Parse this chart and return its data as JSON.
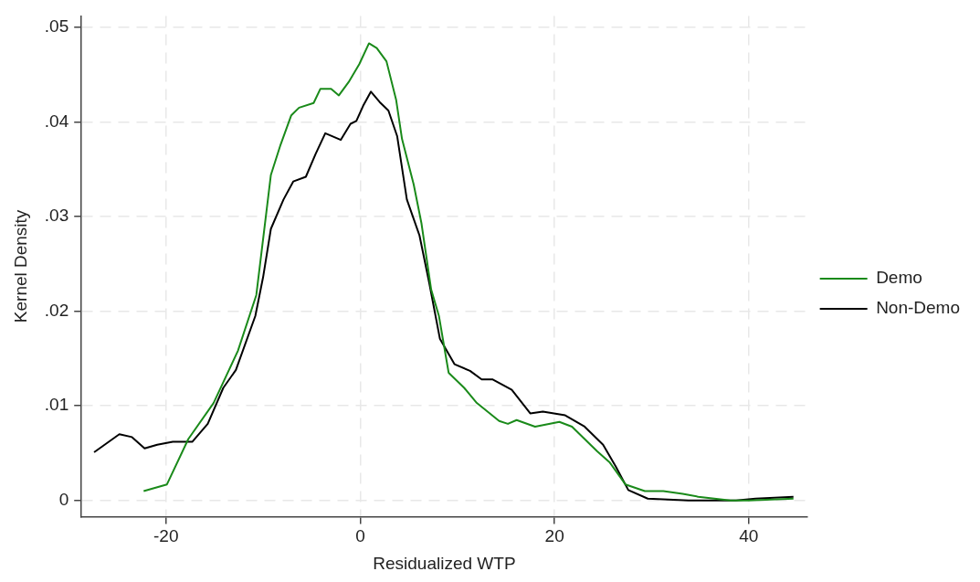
{
  "chart_data": {
    "type": "line",
    "xlabel": "Residualized WTP",
    "ylabel": "Kernel Density",
    "xlim": [
      -28.7,
      46
    ],
    "ylim": [
      -0.0017,
      0.0512
    ],
    "xticks": [
      -20,
      0,
      20,
      40
    ],
    "yticks": [
      {
        "value": 0,
        "label": "0"
      },
      {
        "value": 0.01,
        "label": ".01"
      },
      {
        "value": 0.02,
        "label": ".02"
      },
      {
        "value": 0.03,
        "label": ".03"
      },
      {
        "value": 0.04,
        "label": ".04"
      },
      {
        "value": 0.05,
        "label": ".05"
      }
    ],
    "grid": true,
    "legend": "right",
    "marker": "none",
    "line_style": "solid",
    "series": [
      {
        "name": "Demo",
        "color": "#1a8a1a",
        "x": [
          -22.3,
          -19.9,
          -17.7,
          -15.1,
          -12.6,
          -10.7,
          -9.2,
          -8.2,
          -7.1,
          -6.3,
          -4.8,
          -4.1,
          -3.0,
          -2.2,
          -1.2,
          -0.1,
          0.9,
          1.7,
          2.7,
          3.7,
          4.3,
          5.5,
          6.3,
          7.3,
          8.1,
          9.1,
          10.7,
          12.0,
          14.3,
          15.2,
          16.1,
          18.0,
          20.5,
          21.8,
          24.4,
          25.7,
          27.3,
          29.3,
          31.2,
          33.2,
          34.8,
          38.1,
          40.0,
          44.6
        ],
        "values": [
          0.001,
          0.0017,
          0.0065,
          0.0103,
          0.0158,
          0.0217,
          0.0344,
          0.0376,
          0.0407,
          0.0415,
          0.042,
          0.0435,
          0.0435,
          0.0428,
          0.0442,
          0.0461,
          0.0483,
          0.0478,
          0.0464,
          0.0423,
          0.0382,
          0.0334,
          0.0293,
          0.0223,
          0.0195,
          0.0135,
          0.0119,
          0.0103,
          0.0084,
          0.0081,
          0.0085,
          0.0078,
          0.0083,
          0.0078,
          0.0052,
          0.004,
          0.0017,
          0.001,
          0.001,
          0.0007,
          0.0004,
          0,
          0,
          0.0002
        ]
      },
      {
        "name": "Non-Demo",
        "color": "#000000",
        "x": [
          -27.4,
          -24.8,
          -23.5,
          -22.2,
          -20.9,
          -19.3,
          -17.3,
          -15.7,
          -14.1,
          -12.8,
          -10.8,
          -10.0,
          -9.2,
          -7.9,
          -6.9,
          -5.6,
          -4.6,
          -3.6,
          -2.0,
          -1.0,
          -0.4,
          0.3,
          1.1,
          2.0,
          2.9,
          3.8,
          4.8,
          6.1,
          7.1,
          8.2,
          9.7,
          11.3,
          12.5,
          13.6,
          15.6,
          17.5,
          18.8,
          21.1,
          23.1,
          25.0,
          26.3,
          27.6,
          29.6,
          33.8,
          38.7,
          40.7,
          44.6
        ],
        "values": [
          0.0051,
          0.007,
          0.0067,
          0.0055,
          0.0059,
          0.0062,
          0.0062,
          0.0081,
          0.0119,
          0.0138,
          0.0195,
          0.0236,
          0.0287,
          0.0318,
          0.0337,
          0.0342,
          0.0366,
          0.0388,
          0.0381,
          0.0398,
          0.0401,
          0.0417,
          0.0432,
          0.0421,
          0.0412,
          0.0385,
          0.0318,
          0.028,
          0.023,
          0.0171,
          0.0144,
          0.0137,
          0.0128,
          0.0128,
          0.0117,
          0.0092,
          0.0094,
          0.009,
          0.0078,
          0.0059,
          0.0036,
          0.0011,
          0.0002,
          0,
          0,
          0.0002,
          0.0004
        ]
      }
    ]
  }
}
